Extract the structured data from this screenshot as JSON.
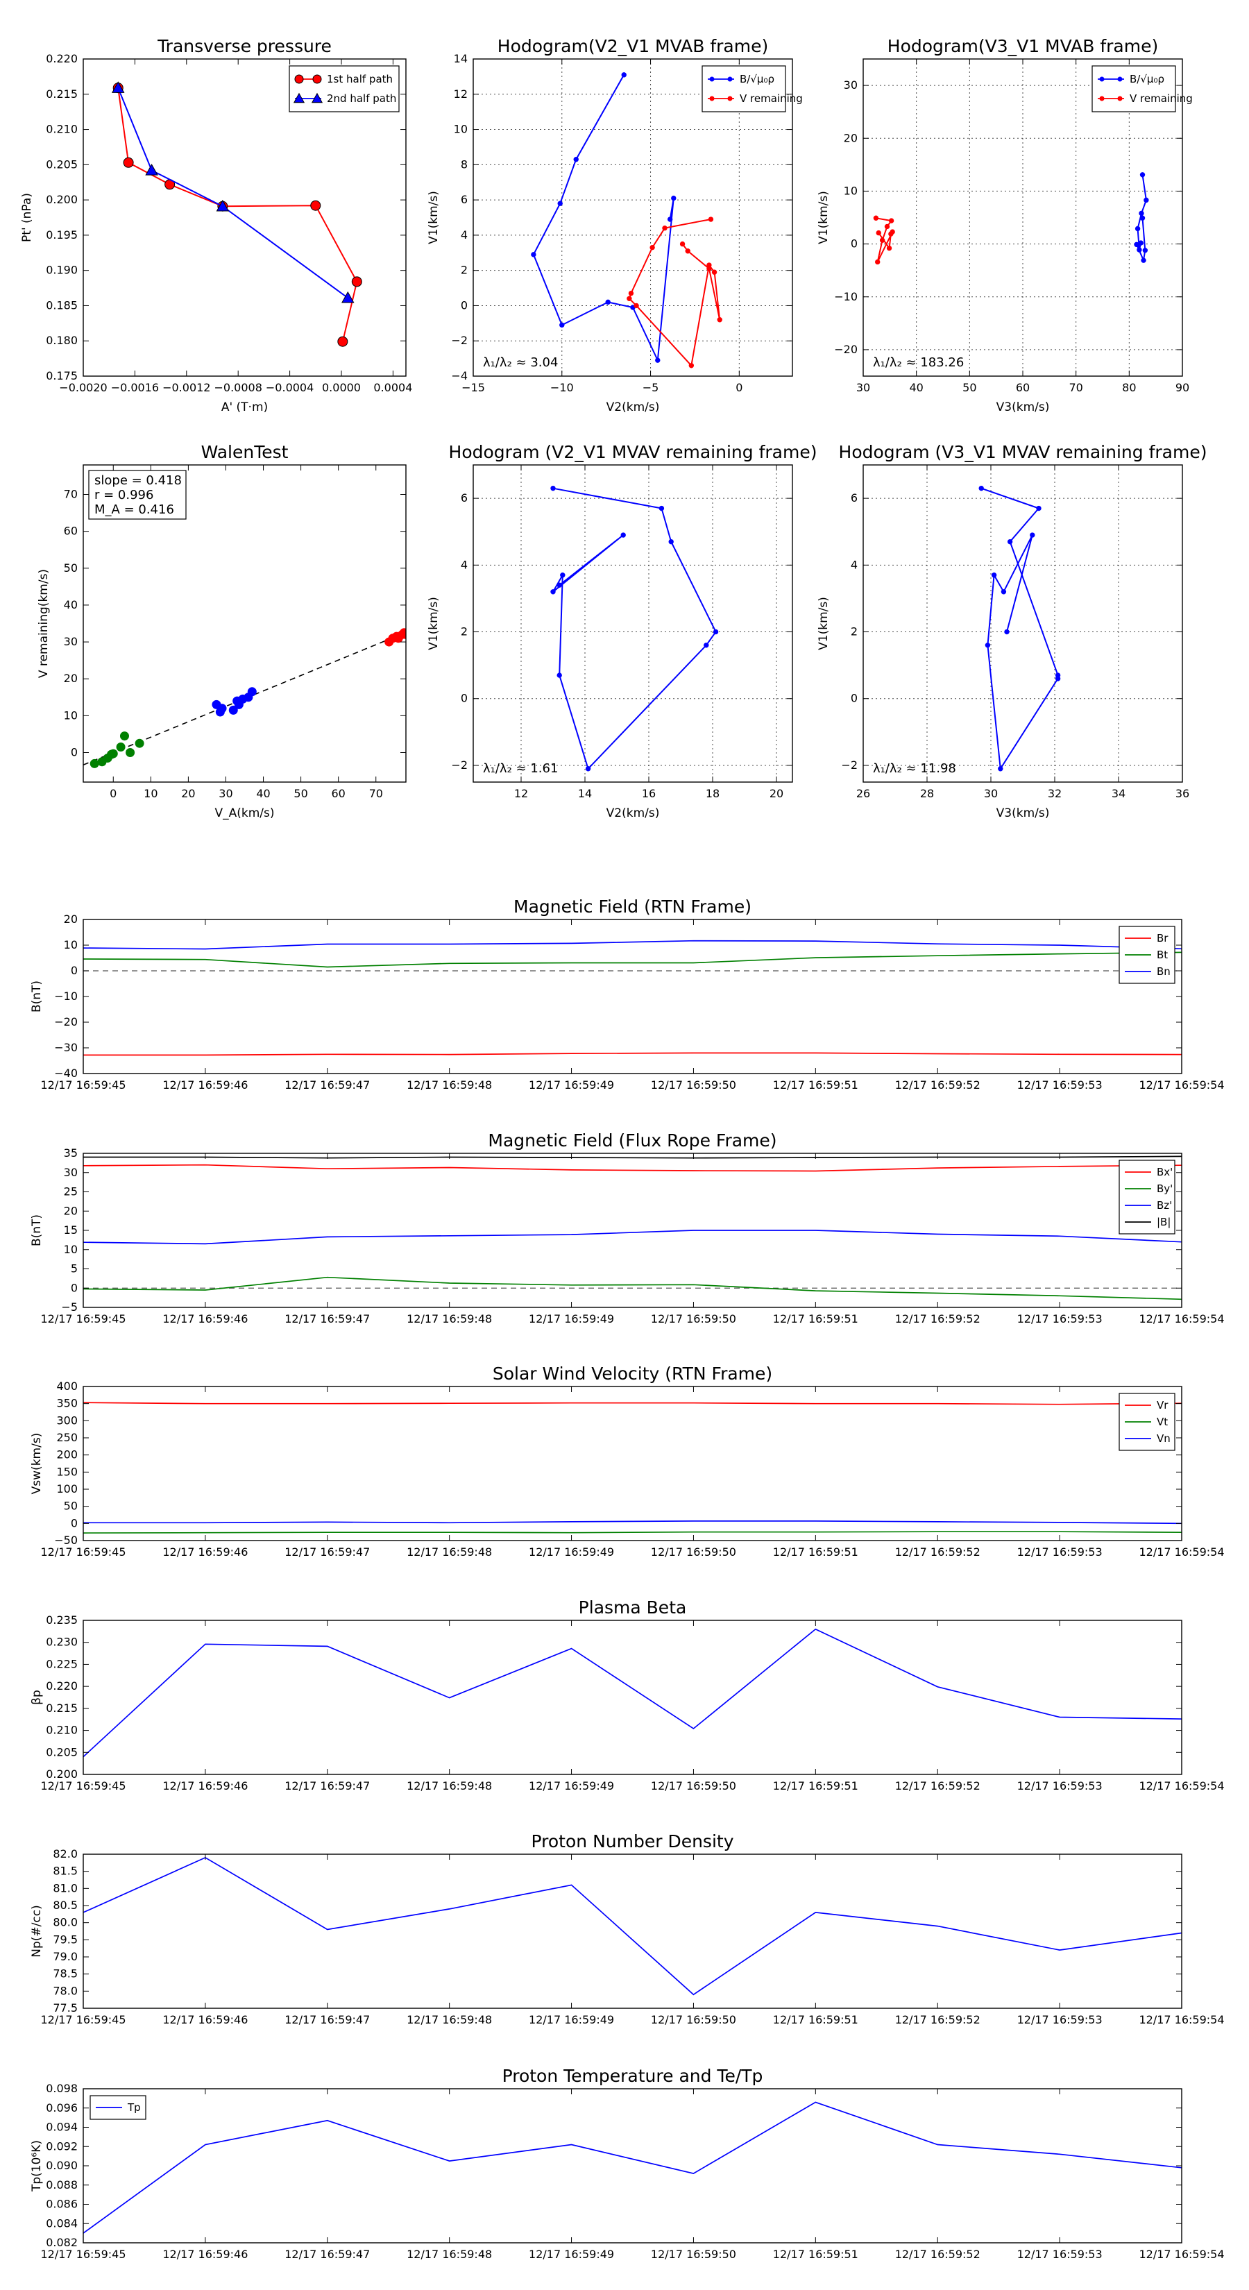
{
  "figure": {
    "kind": "Solar wind flux rope analysis"
  },
  "chart_data": [
    {
      "id": "pt",
      "type": "line",
      "title": "Transverse pressure",
      "xlabel": "A' (T·m)",
      "ylabel": "Pt' (nPa)",
      "xlim": [
        -0.002,
        0.0005
      ],
      "ylim": [
        0.175,
        0.22
      ],
      "xticks": [
        -0.002,
        -0.0016,
        -0.0012,
        -0.0008,
        -0.0004,
        0.0,
        0.0004
      ],
      "xticklabels": [
        "−0.0020",
        "−0.0016",
        "−0.0012",
        "−0.0008",
        "−0.0004",
        "0.0000",
        "0.0004"
      ],
      "yticks": [
        0.175,
        0.18,
        0.185,
        0.19,
        0.195,
        0.2,
        0.205,
        0.21,
        0.215,
        0.22
      ],
      "yticklabels": [
        "0.175",
        "0.180",
        "0.185",
        "0.190",
        "0.195",
        "0.200",
        "0.205",
        "0.210",
        "0.215",
        "0.220"
      ],
      "grid": false,
      "legend": "top-right",
      "series": [
        {
          "name": "1st half path",
          "color": "#ff0000",
          "marker": "circle",
          "x": [
            -0.00173,
            -0.00165,
            -0.00133,
            -0.00092,
            -0.0002,
            0.00012,
            1e-05
          ],
          "y": [
            0.2159,
            0.2053,
            0.2022,
            0.1991,
            0.1992,
            0.1884,
            0.1799
          ]
        },
        {
          "name": "2nd half path",
          "color": "#0000ff",
          "marker": "triangle",
          "x": [
            -0.00173,
            -0.00147,
            -0.00092,
            5e-05
          ],
          "y": [
            0.2159,
            0.2042,
            0.1991,
            0.1861
          ]
        }
      ]
    },
    {
      "id": "hodo1",
      "type": "line",
      "title": "Hodogram(V2_V1 MVAB frame)",
      "xlabel": "V2(km/s)",
      "ylabel": "V1(km/s)",
      "xlim": [
        -15,
        3
      ],
      "ylim": [
        -4,
        14
      ],
      "xticks": [
        -15,
        -10,
        -5,
        0
      ],
      "yticks": [
        -4,
        -2,
        0,
        2,
        4,
        6,
        8,
        10,
        12,
        14
      ],
      "grid": true,
      "legend": "top-right",
      "annotation": "λ₁/λ₂ ≈ 3.04",
      "series": [
        {
          "name": "B/√μ₀ρ",
          "color": "#0000ff",
          "x": [
            -6.5,
            -9.2,
            -10.1,
            -11.6,
            -10,
            -7.4,
            -6,
            -4.6,
            -3.7,
            -3.9
          ],
          "y": [
            13.1,
            8.3,
            5.8,
            2.9,
            -1.1,
            0.2,
            -0.1,
            -3.1,
            6.1,
            4.9
          ]
        },
        {
          "name": "V remaining",
          "color": "#ff0000",
          "x": [
            -1.6,
            -4.2,
            -4.9,
            -6.1,
            -6.2,
            -5.8,
            -2.7,
            -1.7,
            -1.4,
            -1.1,
            -1.7,
            -2.9,
            -3.2
          ],
          "y": [
            4.9,
            4.4,
            3.3,
            0.7,
            0.4,
            0.0,
            -3.4,
            2.3,
            1.9,
            -0.8,
            2.1,
            3.1,
            3.5
          ]
        }
      ]
    },
    {
      "id": "hodo2",
      "type": "line",
      "title": "Hodogram(V3_V1 MVAB frame)",
      "xlabel": "V3(km/s)",
      "ylabel": "V1(km/s)",
      "xlim": [
        30,
        90
      ],
      "ylim": [
        -25,
        35
      ],
      "xticks": [
        30,
        40,
        50,
        60,
        70,
        80,
        90
      ],
      "yticks": [
        -20,
        -10,
        0,
        10,
        20,
        30
      ],
      "grid": true,
      "legend": "top-right",
      "annotation": "λ₁/λ₂ ≈ 183.26",
      "series": [
        {
          "name": "B/√μ₀ρ",
          "color": "#0000ff",
          "x": [
            82.5,
            83.2,
            82.3,
            81.6,
            81.9,
            82.2,
            81.4,
            82.7,
            83.0,
            82.5
          ],
          "y": [
            13.1,
            8.3,
            5.8,
            2.9,
            -1.1,
            0.2,
            -0.1,
            -3.1,
            -1.2,
            4.9
          ]
        },
        {
          "name": "V remaining",
          "color": "#ff0000",
          "x": [
            32.4,
            35.3,
            34.5,
            33.6,
            32.7,
            35.5,
            35.2,
            34.9,
            32.9
          ],
          "y": [
            4.9,
            4.4,
            3.3,
            0.7,
            -3.4,
            2.3,
            1.9,
            -0.8,
            2.1
          ]
        }
      ]
    },
    {
      "id": "walen",
      "type": "scatter",
      "title": "WalenTest",
      "xlabel": "V_A(km/s)",
      "ylabel": "V remaining(km/s)",
      "xlim": [
        -8,
        78
      ],
      "ylim": [
        -8,
        78
      ],
      "xticks": [
        0,
        10,
        20,
        30,
        40,
        50,
        60,
        70
      ],
      "yticks": [
        0,
        10,
        20,
        30,
        40,
        50,
        60,
        70
      ],
      "grid": false,
      "stats": [
        "slope = 0.418",
        "r = 0.996",
        "M_A = 0.416"
      ],
      "fit": {
        "slope": 0.418,
        "intercept": 0.0
      },
      "series": [
        {
          "name": "green",
          "color": "#008000",
          "x": [
            -5,
            -3,
            -1.5,
            -0.5,
            0,
            2,
            3,
            4.5,
            7
          ],
          "y": [
            -3,
            -2.5,
            -1.5,
            -0.5,
            -0.3,
            1.5,
            4.5,
            0,
            2.5
          ]
        },
        {
          "name": "blue",
          "color": "#0000ff",
          "x": [
            27.5,
            28.5,
            29,
            32,
            33,
            33.5,
            34.5,
            36,
            37
          ],
          "y": [
            13,
            11,
            12,
            11.5,
            14,
            13,
            14.5,
            15,
            16.5
          ]
        },
        {
          "name": "red",
          "color": "#ff0000",
          "x": [
            73.5,
            74.5,
            75.5,
            76,
            77,
            77.5,
            78
          ],
          "y": [
            30,
            31,
            31.5,
            31,
            32,
            32.5,
            32
          ]
        }
      ]
    },
    {
      "id": "hodo3",
      "type": "line",
      "title": "Hodogram (V2_V1 MVAV remaining frame)",
      "xlabel": "V2(km/s)",
      "ylabel": "V1(km/s)",
      "xlim": [
        10.5,
        20.5
      ],
      "ylim": [
        -2.5,
        7
      ],
      "xticks": [
        12,
        14,
        16,
        18,
        20
      ],
      "yticks": [
        -2,
        0,
        2,
        4,
        6
      ],
      "grid": true,
      "annotation": "λ₁/λ₂ ≈ 1.61",
      "series": [
        {
          "name": "V",
          "color": "#0000ff",
          "x": [
            13,
            16.4,
            16.7,
            18.1,
            17.8,
            14.1,
            13.2,
            13.3,
            13,
            15.2,
            13.2
          ],
          "y": [
            6.3,
            5.7,
            4.7,
            2,
            1.6,
            -2.1,
            0.7,
            3.7,
            3.2,
            4.9,
            3.4
          ]
        }
      ]
    },
    {
      "id": "hodo4",
      "type": "line",
      "title": "Hodogram (V3_V1 MVAV remaining frame)",
      "xlabel": "V3(km/s)",
      "ylabel": "V1(km/s)",
      "xlim": [
        26,
        36
      ],
      "ylim": [
        -2.5,
        7
      ],
      "xticks": [
        26,
        28,
        30,
        32,
        34,
        36
      ],
      "yticks": [
        -2,
        0,
        2,
        4,
        6
      ],
      "grid": true,
      "annotation": "λ₁/λ₂ ≈ 11.98",
      "series": [
        {
          "name": "V",
          "color": "#0000ff",
          "x": [
            29.7,
            31.5,
            30.6,
            32.1,
            32.1,
            30.3,
            29.9,
            30.1,
            30.4,
            31.3,
            30.5
          ],
          "y": [
            6.3,
            5.7,
            4.7,
            0.7,
            0.6,
            -2.1,
            1.6,
            3.7,
            3.2,
            4.9,
            2
          ]
        }
      ]
    },
    {
      "id": "brtn",
      "type": "line",
      "title": "Magnetic Field (RTN Frame)",
      "ylabel": "B(nT)",
      "ylim": [
        -40,
        20
      ],
      "yticks": [
        -40,
        -30,
        -20,
        -10,
        0,
        10,
        20
      ],
      "zero_line": true,
      "legend": "top-right",
      "series": [
        {
          "name": "Br",
          "color": "#ff0000",
          "values": [
            -32.8,
            -32.8,
            -32.5,
            -32.6,
            -32.2,
            -32.0,
            -32.0,
            -32.3,
            -32.5,
            -32.6
          ]
        },
        {
          "name": "Bt",
          "color": "#008000",
          "values": [
            4.6,
            4.4,
            1.5,
            2.9,
            3.1,
            3.1,
            5.1,
            5.9,
            6.6,
            7.2
          ]
        },
        {
          "name": "Bn",
          "color": "#0000ff",
          "values": [
            8.9,
            8.5,
            10.4,
            10.4,
            10.7,
            11.7,
            11.6,
            10.5,
            10.0,
            8.6
          ]
        }
      ]
    },
    {
      "id": "bfr",
      "type": "line",
      "title": "Magnetic Field (Flux Rope Frame)",
      "ylabel": "B(nT)",
      "ylim": [
        -5,
        35
      ],
      "yticks": [
        -5,
        0,
        5,
        10,
        15,
        20,
        25,
        30,
        35
      ],
      "zero_line": true,
      "legend": "top-right",
      "series": [
        {
          "name": "Bx'",
          "color": "#ff0000",
          "values": [
            31.8,
            32.0,
            31.0,
            31.3,
            30.7,
            30.5,
            30.4,
            31.2,
            31.6,
            31.9
          ]
        },
        {
          "name": "By'",
          "color": "#008000",
          "values": [
            -0.2,
            -0.5,
            2.8,
            1.3,
            0.8,
            0.9,
            -0.7,
            -1.3,
            -2.0,
            -2.9
          ]
        },
        {
          "name": "Bz'",
          "color": "#0000ff",
          "values": [
            11.9,
            11.5,
            13.3,
            13.6,
            13.9,
            15.0,
            15.0,
            14.0,
            13.5,
            12.0
          ]
        },
        {
          "name": "|B|",
          "color": "#000000",
          "values": [
            34.0,
            34.0,
            33.8,
            34.0,
            33.9,
            33.8,
            33.9,
            34.0,
            34.0,
            34.2
          ]
        }
      ]
    },
    {
      "id": "vsw",
      "type": "line",
      "title": "Solar Wind Velocity (RTN Frame)",
      "ylabel": "Vsw(km/s)",
      "ylim": [
        -50,
        400
      ],
      "yticks": [
        -50,
        0,
        50,
        100,
        150,
        200,
        250,
        300,
        350,
        400
      ],
      "legend": "top-right",
      "series": [
        {
          "name": "Vr",
          "color": "#ff0000",
          "values": [
            353,
            350,
            350,
            351,
            352,
            352,
            350,
            350,
            348,
            351
          ]
        },
        {
          "name": "Vt",
          "color": "#008000",
          "values": [
            -28,
            -27,
            -26,
            -26,
            -27,
            -25,
            -25,
            -24,
            -24,
            -26
          ]
        },
        {
          "name": "Vn",
          "color": "#0000ff",
          "values": [
            2,
            2,
            4,
            2,
            5,
            7,
            7,
            5,
            3,
            0
          ]
        }
      ]
    },
    {
      "id": "beta",
      "type": "line",
      "title": "Plasma Beta",
      "ylabel": "βp",
      "ylim": [
        0.2,
        0.235
      ],
      "yticks": [
        0.2,
        0.205,
        0.21,
        0.215,
        0.22,
        0.225,
        0.23,
        0.235
      ],
      "yticklabels": [
        "0.200",
        "0.205",
        "0.210",
        "0.215",
        "0.220",
        "0.225",
        "0.230",
        "0.235"
      ],
      "series": [
        {
          "name": "beta",
          "color": "#0000ff",
          "values": [
            0.204,
            0.2296,
            0.2291,
            0.2174,
            0.2286,
            0.2104,
            0.233,
            0.2199,
            0.213,
            0.2126
          ]
        }
      ]
    },
    {
      "id": "np",
      "type": "line",
      "title": "Proton Number Density",
      "ylabel": "Np(#/cc)",
      "ylim": [
        77.5,
        82
      ],
      "yticks": [
        77.5,
        78,
        78.5,
        79,
        79.5,
        80,
        80.5,
        81,
        81.5,
        82
      ],
      "yticklabels": [
        "77.5",
        "78.0",
        "78.5",
        "79.0",
        "79.5",
        "80.0",
        "80.5",
        "81.0",
        "81.5",
        "82.0"
      ],
      "series": [
        {
          "name": "Np",
          "color": "#0000ff",
          "values": [
            80.3,
            81.9,
            79.8,
            80.4,
            81.1,
            77.9,
            80.3,
            79.9,
            79.2,
            79.7
          ]
        }
      ]
    },
    {
      "id": "tp",
      "type": "line",
      "title": "Proton Temperature and Te/Tp",
      "ylabel": "Tp(10⁶K)",
      "ylim": [
        0.082,
        0.098
      ],
      "yticks": [
        0.082,
        0.084,
        0.086,
        0.088,
        0.09,
        0.092,
        0.094,
        0.096,
        0.098
      ],
      "yticklabels": [
        "0.082",
        "0.084",
        "0.086",
        "0.088",
        "0.090",
        "0.092",
        "0.094",
        "0.096",
        "0.098"
      ],
      "legend": "top-left",
      "series": [
        {
          "name": "Tp",
          "color": "#0000ff",
          "values": [
            0.083,
            0.0922,
            0.0947,
            0.0905,
            0.0922,
            0.0892,
            0.0966,
            0.0922,
            0.0912,
            0.0898
          ]
        }
      ]
    }
  ],
  "time_axis": [
    "12/17 16:59:45",
    "12/17 16:59:46",
    "12/17 16:59:47",
    "12/17 16:59:48",
    "12/17 16:59:49",
    "12/17 16:59:50",
    "12/17 16:59:51",
    "12/17 16:59:52",
    "12/17 16:59:53",
    "12/17 16:59:54"
  ]
}
